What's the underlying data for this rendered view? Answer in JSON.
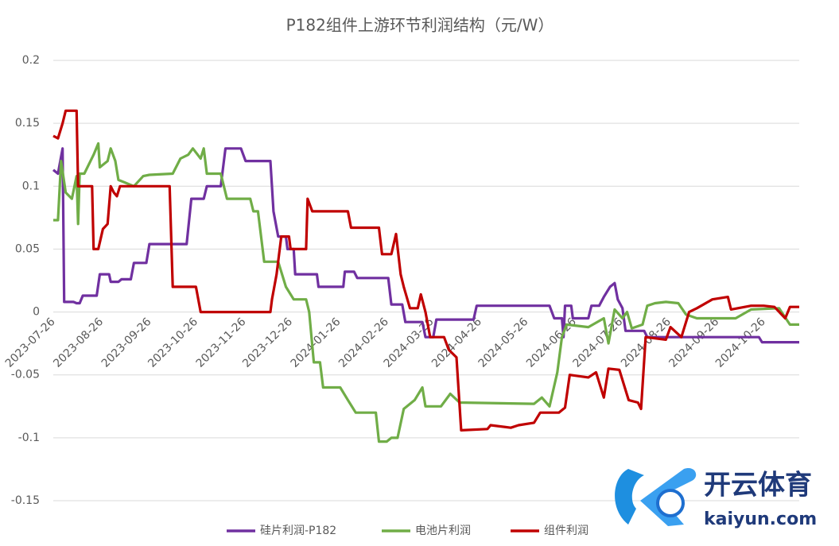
{
  "chart_data": {
    "type": "line",
    "title": "P182组件上游环节利润结构（元/W）",
    "xlim": [
      "2023-07-26",
      "2024-11-18"
    ],
    "xticks": [
      "2023-07-26",
      "2023-08-26",
      "2023-09-26",
      "2023-10-26",
      "2023-11-26",
      "2023-12-26",
      "2024-01-26",
      "2024-02-26",
      "2024-03-26",
      "2024-04-26",
      "2024-05-26",
      "2024-06-26",
      "2024-07-26",
      "2024-08-26",
      "2024-09-26",
      "2024-10-26"
    ],
    "ylim": [
      -0.15,
      0.2
    ],
    "yticks": [
      0.2,
      0.15,
      0.1,
      0.05,
      0,
      -0.05,
      -0.1,
      -0.15
    ],
    "grid": true,
    "legend": "bottom",
    "series": [
      {
        "name": "硅片利润-P182",
        "color": "#7030a0",
        "x": [
          "2023-07-26",
          "2023-07-29",
          "2023-08-01",
          "2023-08-02",
          "2023-08-08",
          "2023-08-10",
          "2023-08-12",
          "2023-08-14",
          "2023-08-23",
          "2023-08-25",
          "2023-08-31",
          "2023-09-01",
          "2023-09-06",
          "2023-09-08",
          "2023-09-14",
          "2023-09-16",
          "2023-09-24",
          "2023-09-26",
          "2023-10-20",
          "2023-10-23",
          "2023-10-31",
          "2023-11-02",
          "2023-11-11",
          "2023-11-14",
          "2023-11-24",
          "2023-11-27",
          "2023-12-13",
          "2023-12-15",
          "2023-12-18",
          "2023-12-23",
          "2023-12-24",
          "2023-12-28",
          "2023-12-29",
          "2024-01-12",
          "2024-01-13",
          "2024-01-29",
          "2024-01-30",
          "2024-02-05",
          "2024-02-07",
          "2024-02-27",
          "2024-02-29",
          "2024-03-07",
          "2024-03-09",
          "2024-03-20",
          "2024-03-22",
          "2024-03-27",
          "2024-03-29",
          "2024-04-22",
          "2024-04-24",
          "2024-06-10",
          "2024-06-13",
          "2024-06-18",
          "2024-06-19",
          "2024-06-20",
          "2024-06-24",
          "2024-06-25",
          "2024-07-05",
          "2024-07-07",
          "2024-07-12",
          "2024-07-15",
          "2024-07-19",
          "2024-07-22",
          "2024-07-24",
          "2024-07-27",
          "2024-07-29",
          "2024-08-10",
          "2024-08-12",
          "2024-10-23",
          "2024-10-25",
          "2024-11-18"
        ],
        "values": [
          0.113,
          0.11,
          0.13,
          0.008,
          0.008,
          0.007,
          0.007,
          0.013,
          0.013,
          0.03,
          0.03,
          0.024,
          0.024,
          0.026,
          0.026,
          0.039,
          0.039,
          0.054,
          0.054,
          0.09,
          0.09,
          0.1,
          0.1,
          0.13,
          0.13,
          0.12,
          0.12,
          0.08,
          0.06,
          0.06,
          0.05,
          0.05,
          0.03,
          0.03,
          0.02,
          0.02,
          0.032,
          0.032,
          0.027,
          0.027,
          0.006,
          0.006,
          -0.008,
          -0.008,
          -0.02,
          -0.02,
          -0.006,
          -0.006,
          0.005,
          0.005,
          -0.005,
          -0.005,
          -0.02,
          0.005,
          0.005,
          -0.005,
          -0.005,
          0.005,
          0.005,
          0.012,
          0.02,
          0.023,
          0.01,
          0.003,
          -0.015,
          -0.015,
          -0.02,
          -0.02,
          -0.024,
          -0.024
        ]
      },
      {
        "name": "电池片利润",
        "color": "#70ad47",
        "x": [
          "2023-07-26",
          "2023-07-29",
          "2023-07-31",
          "2023-08-03",
          "2023-08-07",
          "2023-08-10",
          "2023-08-11",
          "2023-08-12",
          "2023-08-15",
          "2023-08-21",
          "2023-08-24",
          "2023-08-25",
          "2023-08-28",
          "2023-08-30",
          "2023-09-01",
          "2023-09-04",
          "2023-09-06",
          "2023-09-10",
          "2023-09-16",
          "2023-09-22",
          "2023-09-26",
          "2023-10-11",
          "2023-10-16",
          "2023-10-21",
          "2023-10-24",
          "2023-10-29",
          "2023-10-31",
          "2023-11-02",
          "2023-11-11",
          "2023-11-15",
          "2023-11-30",
          "2023-12-02",
          "2023-12-05",
          "2023-12-09",
          "2023-12-18",
          "2023-12-23",
          "2023-12-28",
          "2024-01-05",
          "2024-01-07",
          "2024-01-10",
          "2024-01-14",
          "2024-01-16",
          "2024-01-27",
          "2024-02-01",
          "2024-02-06",
          "2024-02-19",
          "2024-02-21",
          "2024-02-26",
          "2024-02-29",
          "2024-03-04",
          "2024-03-08",
          "2024-03-15",
          "2024-03-20",
          "2024-03-22",
          "2024-04-01",
          "2024-04-07",
          "2024-04-13",
          "2024-05-31",
          "2024-06-05",
          "2024-06-10",
          "2024-06-15",
          "2024-06-18",
          "2024-06-21",
          "2024-07-05",
          "2024-07-15",
          "2024-07-18",
          "2024-07-22",
          "2024-07-27",
          "2024-07-30",
          "2024-08-02",
          "2024-08-09",
          "2024-08-12",
          "2024-08-17",
          "2024-08-24",
          "2024-09-01",
          "2024-09-06",
          "2024-09-13",
          "2024-10-08",
          "2024-10-18",
          "2024-11-05",
          "2024-11-12",
          "2024-11-18"
        ],
        "values": [
          0.073,
          0.073,
          0.12,
          0.095,
          0.09,
          0.108,
          0.07,
          0.11,
          0.11,
          0.125,
          0.134,
          0.115,
          0.118,
          0.12,
          0.13,
          0.12,
          0.105,
          0.103,
          0.1,
          0.108,
          0.109,
          0.11,
          0.122,
          0.125,
          0.13,
          0.122,
          0.13,
          0.11,
          0.11,
          0.09,
          0.09,
          0.08,
          0.08,
          0.04,
          0.04,
          0.02,
          0.01,
          0.01,
          0,
          -0.04,
          -0.04,
          -0.06,
          -0.06,
          -0.07,
          -0.08,
          -0.08,
          -0.103,
          -0.103,
          -0.1,
          -0.1,
          -0.077,
          -0.07,
          -0.06,
          -0.075,
          -0.075,
          -0.065,
          -0.072,
          -0.073,
          -0.068,
          -0.075,
          -0.048,
          -0.02,
          -0.01,
          -0.012,
          -0.005,
          -0.025,
          0.002,
          -0.005,
          0,
          -0.013,
          -0.01,
          0.005,
          0.007,
          0.008,
          0.007,
          -0.002,
          -0.005,
          -0.005,
          0.002,
          0.003,
          -0.01,
          -0.01
        ]
      },
      {
        "name": "组件利润",
        "color": "#c00000",
        "x": [
          "2023-07-26",
          "2023-07-29",
          "2023-08-01",
          "2023-08-03",
          "2023-08-10",
          "2023-08-11",
          "2023-08-20",
          "2023-08-21",
          "2023-08-24",
          "2023-08-27",
          "2023-08-30",
          "2023-09-01",
          "2023-09-03",
          "2023-09-05",
          "2023-09-07",
          "2023-10-09",
          "2023-10-11",
          "2023-10-26",
          "2023-10-29",
          "2023-12-13",
          "2023-12-14",
          "2023-12-17",
          "2023-12-20",
          "2023-12-25",
          "2023-12-26",
          "2024-01-05",
          "2024-01-06",
          "2024-01-09",
          "2024-02-01",
          "2024-02-03",
          "2024-02-21",
          "2024-02-23",
          "2024-02-29",
          "2024-03-03",
          "2024-03-06",
          "2024-03-08",
          "2024-03-12",
          "2024-03-17",
          "2024-03-19",
          "2024-03-22",
          "2024-03-25",
          "2024-04-03",
          "2024-04-06",
          "2024-04-11",
          "2024-04-14",
          "2024-05-01",
          "2024-05-03",
          "2024-05-16",
          "2024-05-21",
          "2024-05-31",
          "2024-06-04",
          "2024-06-16",
          "2024-06-20",
          "2024-06-23",
          "2024-07-05",
          "2024-07-10",
          "2024-07-15",
          "2024-07-18",
          "2024-07-25",
          "2024-07-31",
          "2024-08-06",
          "2024-08-08",
          "2024-08-11",
          "2024-08-24",
          "2024-08-27",
          "2024-09-03",
          "2024-09-08",
          "2024-09-13",
          "2024-09-23",
          "2024-10-03",
          "2024-10-05",
          "2024-10-18",
          "2024-10-26",
          "2024-11-02",
          "2024-11-09",
          "2024-11-12",
          "2024-11-18"
        ],
        "values": [
          0.14,
          0.138,
          0.15,
          0.16,
          0.16,
          0.1,
          0.1,
          0.05,
          0.05,
          0.066,
          0.07,
          0.1,
          0.095,
          0.092,
          0.1,
          0.1,
          0.02,
          0.02,
          0,
          0,
          0.01,
          0.03,
          0.06,
          0.06,
          0.05,
          0.05,
          0.09,
          0.08,
          0.08,
          0.067,
          0.067,
          0.046,
          0.046,
          0.062,
          0.03,
          0.02,
          0.003,
          0.003,
          0.014,
          0,
          -0.02,
          -0.02,
          -0.03,
          -0.036,
          -0.094,
          -0.093,
          -0.09,
          -0.092,
          -0.09,
          -0.088,
          -0.08,
          -0.08,
          -0.076,
          -0.05,
          -0.052,
          -0.048,
          -0.068,
          -0.045,
          -0.046,
          -0.07,
          -0.072,
          -0.077,
          -0.02,
          -0.022,
          -0.012,
          -0.02,
          0,
          0.003,
          0.01,
          0.012,
          0.002,
          0.005,
          0.005,
          0.004,
          -0.005,
          0.004,
          0.004
        ]
      }
    ]
  },
  "watermark": {
    "brand": "开云体育",
    "site": "kaiyun.com"
  }
}
